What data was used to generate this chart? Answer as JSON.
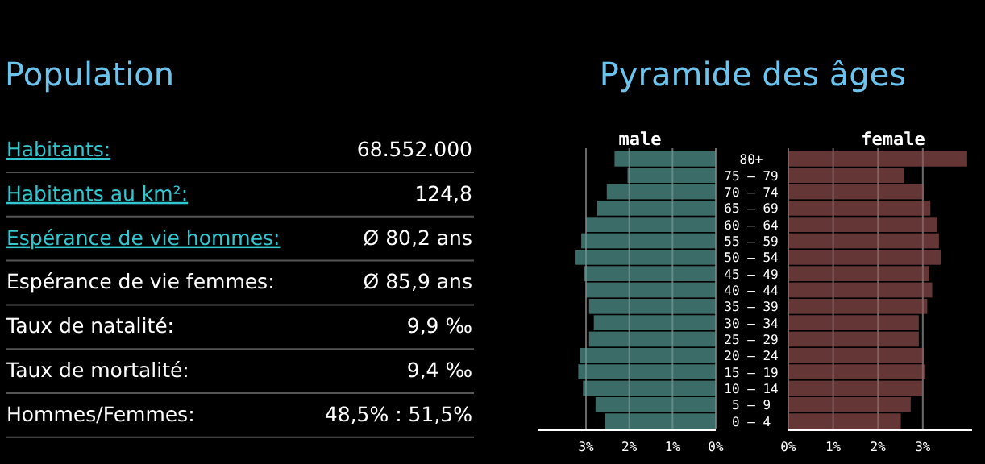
{
  "chart_data": [
    {
      "type": "other",
      "title": "Population",
      "annotations": [
        "Habitants:",
        "68.552.000",
        "Habitants au km²:",
        "124,8",
        "Espérance de vie hommes:",
        "Ø 80,2 ans",
        "Espérance de vie femmes:",
        "Ø 85,9 ans",
        "Taux de natalité:",
        "9,9 ‰",
        "Taux de mortalité:",
        "9,4 ‰",
        "Hommes/Femmes:",
        "48,5% : 51,5%"
      ]
    },
    {
      "type": "bar",
      "orientation": "horizontal",
      "title": "Pyramide des âges",
      "subtitle": "male",
      "categories": [
        "80+",
        "75 – 79",
        "70 – 74",
        "65 – 69",
        "60 – 64",
        "55 – 59",
        "50 – 54",
        "45 – 49",
        "40 – 44",
        "35 – 39",
        "30 – 34",
        "25 – 29",
        "20 – 24",
        "15 – 19",
        "10 – 14",
        "5 – 9",
        "0 – 4"
      ],
      "xlim": [
        4.1,
        0
      ],
      "xticks": [
        {
          "value": 3,
          "label": "3%"
        },
        {
          "value": 2,
          "label": "2%"
        },
        {
          "value": 1,
          "label": "1%"
        },
        {
          "value": 0,
          "label": "0%"
        }
      ],
      "grid": "x",
      "series": [
        {
          "color": "#417571",
          "values": [
            2.34,
            2.04,
            2.52,
            2.74,
            3.0,
            3.11,
            3.26,
            3.04,
            3.0,
            2.93,
            2.82,
            2.93,
            3.15,
            3.18,
            3.07,
            2.78,
            2.56
          ]
        }
      ]
    },
    {
      "type": "bar",
      "orientation": "horizontal",
      "subtitle": "female",
      "categories": [
        null,
        null,
        null,
        null,
        null,
        null,
        null,
        null,
        null,
        null,
        null,
        null,
        null,
        null,
        null,
        null,
        null
      ],
      "xlim": [
        0,
        4.1
      ],
      "xticks": [
        {
          "value": 0,
          "label": "0%"
        },
        {
          "value": 1,
          "label": "1%"
        },
        {
          "value": 2,
          "label": "2%"
        },
        {
          "value": 3,
          "label": "3%"
        }
      ],
      "grid": "x",
      "tick_labels": "x",
      "series": [
        {
          "color": "#6e3b3b",
          "values": [
            3.99,
            2.58,
            3.02,
            3.17,
            3.32,
            3.36,
            3.4,
            3.14,
            3.21,
            3.1,
            2.91,
            2.91,
            3.02,
            3.06,
            2.99,
            2.73,
            2.51
          ]
        }
      ]
    }
  ]
}
